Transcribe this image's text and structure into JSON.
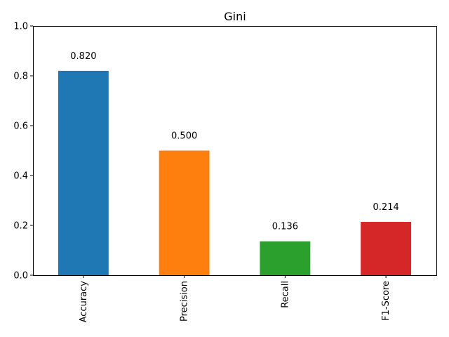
{
  "chart_data": {
    "type": "bar",
    "title": "Gini",
    "xlabel": "",
    "ylabel": "",
    "categories": [
      "Accuracy",
      "Precision",
      "Recall",
      "F1-Score"
    ],
    "values": [
      0.82,
      0.5,
      0.136,
      0.214
    ],
    "value_labels": [
      "0.820",
      "0.500",
      "0.136",
      "0.214"
    ],
    "colors": [
      "#1f77b4",
      "#ff7f0e",
      "#2ca02c",
      "#d62728"
    ],
    "ylim": [
      0,
      1.0
    ],
    "yticks": [
      0.0,
      0.2,
      0.4,
      0.6,
      0.8,
      1.0
    ],
    "ytick_labels": [
      "0.0",
      "0.2",
      "0.4",
      "0.6",
      "0.8",
      "1.0"
    ],
    "xtick_rotation": "vertical",
    "grid": false,
    "legend": "none"
  }
}
